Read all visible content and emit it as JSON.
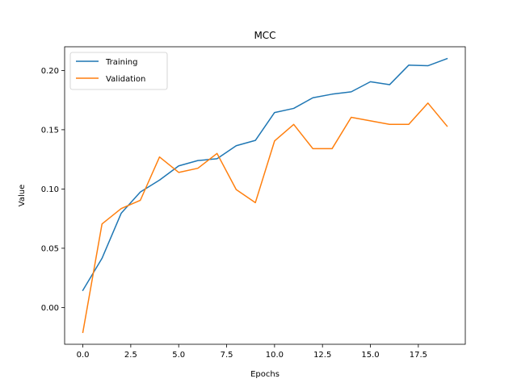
{
  "chart_data": {
    "type": "line",
    "title": "MCC",
    "xlabel": "Epochs",
    "ylabel": "Value",
    "xlim": [
      -0.95,
      19.95
    ],
    "ylim": [
      -0.031,
      0.22
    ],
    "xticks": [
      0.0,
      2.5,
      5.0,
      7.5,
      10.0,
      12.5,
      15.0,
      17.5
    ],
    "xtick_labels": [
      "0.0",
      "2.5",
      "5.0",
      "7.5",
      "10.0",
      "12.5",
      "15.0",
      "17.5"
    ],
    "yticks": [
      0.0,
      0.05,
      0.1,
      0.15,
      0.2
    ],
    "ytick_labels": [
      "0.00",
      "0.05",
      "0.10",
      "0.15",
      "0.20"
    ],
    "grid": false,
    "legend_position": "top-left",
    "x": [
      0,
      1,
      2,
      3,
      4,
      5,
      6,
      7,
      8,
      9,
      10,
      11,
      12,
      13,
      14,
      15,
      16,
      17,
      18,
      19
    ],
    "series": [
      {
        "name": "Training",
        "color": "#1f77b4",
        "values": [
          0.0145,
          0.0415,
          0.0795,
          0.0975,
          0.1075,
          0.1195,
          0.124,
          0.1255,
          0.1365,
          0.141,
          0.1645,
          0.168,
          0.177,
          0.18,
          0.182,
          0.1905,
          0.188,
          0.2045,
          0.204,
          0.21
        ]
      },
      {
        "name": "Validation",
        "color": "#ff7f0e",
        "values": [
          -0.021,
          0.0705,
          0.0835,
          0.0905,
          0.127,
          0.114,
          0.1175,
          0.13,
          0.0995,
          0.0885,
          0.1405,
          0.1545,
          0.134,
          0.134,
          0.1605,
          0.1575,
          0.1545,
          0.1545,
          0.1725,
          0.153
        ]
      }
    ]
  }
}
